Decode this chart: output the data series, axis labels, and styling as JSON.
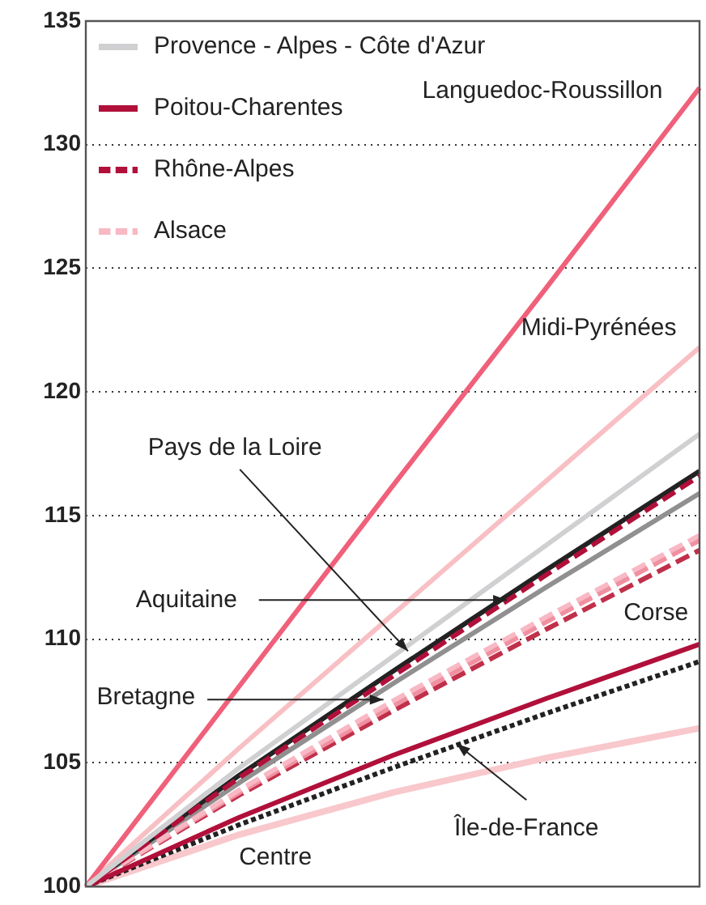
{
  "chart_data": {
    "type": "line",
    "categories": [
      null,
      null,
      null,
      null,
      null
    ],
    "ylim": [
      100,
      135
    ],
    "yticks": [
      100,
      105,
      110,
      115,
      120,
      125,
      130,
      135
    ],
    "grid": "y",
    "legend": "top left",
    "marker": "none",
    "annotations": [
      "Languedoc-Roussillon",
      "Midi-Pyrénées",
      "Pays de la Loire",
      "Aquitaine",
      "Bretagne",
      "Corse",
      "Île-de-France",
      "Centre"
    ],
    "series": [
      {
        "name": "Provence - Alpes - Côte d'Azur",
        "color": "#d0d0d2",
        "values": [
          100,
          104.8,
          109.3,
          113.8,
          118.3
        ]
      },
      {
        "name": "Poitou-Charentes",
        "color": "#b0103a",
        "values": [
          100,
          102.8,
          105.3,
          107.6,
          109.8
        ]
      },
      {
        "name": "Rhône-Alpes",
        "color": "#b0103a",
        "line_style": "dashed",
        "values": [
          100,
          104.4,
          108.5,
          112.6,
          116.6
        ]
      },
      {
        "name": "Alsace",
        "color": "#f8b8c4",
        "line_style": "dashed",
        "values": [
          100,
          103.9,
          107.5,
          110.9,
          114.2
        ]
      },
      {
        "color": "#f0607a",
        "values": [
          100,
          108.1,
          116.2,
          124.2,
          132.3
        ]
      },
      {
        "color": "#f8c0c4",
        "values": [
          100,
          105.6,
          111.0,
          116.4,
          121.8
        ]
      },
      {
        "color": "#222222",
        "values": [
          100,
          104.5,
          108.7,
          112.8,
          116.8
        ]
      },
      {
        "color": "#909090",
        "values": [
          100,
          104.2,
          108.2,
          112.1,
          115.9
        ]
      },
      {
        "color": "#f090a0",
        "line_style": "dashed",
        "values": [
          100,
          103.8,
          107.3,
          110.7,
          114.0
        ]
      },
      {
        "color": "#c0304a",
        "line_style": "dashed",
        "values": [
          100,
          103.7,
          107.1,
          110.4,
          113.6
        ]
      },
      {
        "color": "#222222",
        "line_style": "dotted",
        "values": [
          100,
          102.5,
          104.8,
          107.0,
          109.1
        ]
      },
      {
        "color": "#f8c8cc",
        "values": [
          100,
          102.1,
          103.8,
          105.2,
          106.4
        ]
      }
    ]
  }
}
